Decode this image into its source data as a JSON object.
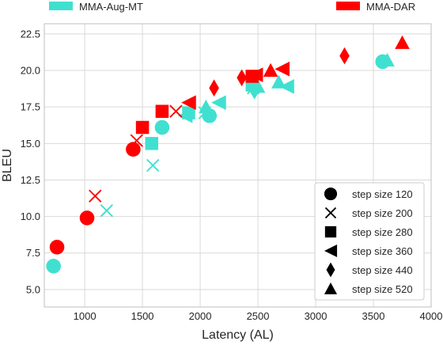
{
  "chart_data": {
    "type": "scatter",
    "xlabel": "Latency (AL)",
    "ylabel": "BLEU",
    "xlim": [
      650,
      4000
    ],
    "ylim": [
      3.8,
      23.2
    ],
    "xticks": [
      1000,
      1500,
      2000,
      2500,
      3000,
      3500,
      4000
    ],
    "yticks": [
      5.0,
      7.5,
      10.0,
      12.5,
      15.0,
      17.5,
      20.0,
      22.5
    ],
    "ytick_labels": [
      "5.0",
      "7.5",
      "10.0",
      "12.5",
      "15.0",
      "17.5",
      "20.0",
      "22.5"
    ],
    "grid": true,
    "series": [
      {
        "name": "MMA-Aug-MT",
        "color": "#40e0d0",
        "points": [
          {
            "marker": "circle",
            "x": 730,
            "y": 6.6
          },
          {
            "marker": "circle",
            "x": 1670,
            "y": 16.1
          },
          {
            "marker": "circle",
            "x": 2080,
            "y": 16.9
          },
          {
            "marker": "circle",
            "x": 3580,
            "y": 20.6
          },
          {
            "marker": "x",
            "x": 1190,
            "y": 10.4
          },
          {
            "marker": "x",
            "x": 1590,
            "y": 13.5
          },
          {
            "marker": "x",
            "x": 2040,
            "y": 17.1
          },
          {
            "marker": "x",
            "x": 2460,
            "y": 18.8
          },
          {
            "marker": "square",
            "x": 1580,
            "y": 15.0
          },
          {
            "marker": "square",
            "x": 1900,
            "y": 17.1
          },
          {
            "marker": "square",
            "x": 2450,
            "y": 19.0
          },
          {
            "marker": "triangle-left",
            "x": 1870,
            "y": 16.9
          },
          {
            "marker": "triangle-left",
            "x": 2160,
            "y": 17.8
          },
          {
            "marker": "triangle-left",
            "x": 2750,
            "y": 18.9
          },
          {
            "marker": "diamond",
            "x": 2470,
            "y": 18.6
          },
          {
            "marker": "triangle-up",
            "x": 2050,
            "y": 17.5
          },
          {
            "marker": "triangle-up",
            "x": 2500,
            "y": 18.9
          },
          {
            "marker": "triangle-up",
            "x": 2680,
            "y": 19.2
          },
          {
            "marker": "triangle-up",
            "x": 3620,
            "y": 20.7
          }
        ]
      },
      {
        "name": "MMA-DAR",
        "color": "#ff0000",
        "points": [
          {
            "marker": "circle",
            "x": 760,
            "y": 7.9
          },
          {
            "marker": "circle",
            "x": 1020,
            "y": 9.9
          },
          {
            "marker": "circle",
            "x": 1420,
            "y": 14.6
          },
          {
            "marker": "x",
            "x": 1090,
            "y": 11.4
          },
          {
            "marker": "x",
            "x": 1450,
            "y": 15.2
          },
          {
            "marker": "x",
            "x": 1790,
            "y": 17.2
          },
          {
            "marker": "square",
            "x": 1500,
            "y": 16.1
          },
          {
            "marker": "square",
            "x": 1670,
            "y": 17.2
          },
          {
            "marker": "square",
            "x": 2450,
            "y": 19.6
          },
          {
            "marker": "triangle-left",
            "x": 1900,
            "y": 17.8
          },
          {
            "marker": "triangle-left",
            "x": 2480,
            "y": 19.7
          },
          {
            "marker": "triangle-left",
            "x": 2710,
            "y": 20.1
          },
          {
            "marker": "diamond",
            "x": 2120,
            "y": 18.8
          },
          {
            "marker": "diamond",
            "x": 2360,
            "y": 19.5
          },
          {
            "marker": "diamond",
            "x": 3250,
            "y": 21.0
          },
          {
            "marker": "triangle-up",
            "x": 2610,
            "y": 20.0
          },
          {
            "marker": "triangle-up",
            "x": 3750,
            "y": 21.9
          }
        ]
      }
    ],
    "marker_legend": [
      {
        "marker": "circle",
        "label": "step size 120"
      },
      {
        "marker": "x",
        "label": "step size 200"
      },
      {
        "marker": "square",
        "label": "step size 280"
      },
      {
        "marker": "triangle-left",
        "label": "step size 360"
      },
      {
        "marker": "diamond",
        "label": "step size 440"
      },
      {
        "marker": "triangle-up",
        "label": "step size 520"
      }
    ],
    "legend_placement": "series legend top, marker legend bottom-right"
  }
}
